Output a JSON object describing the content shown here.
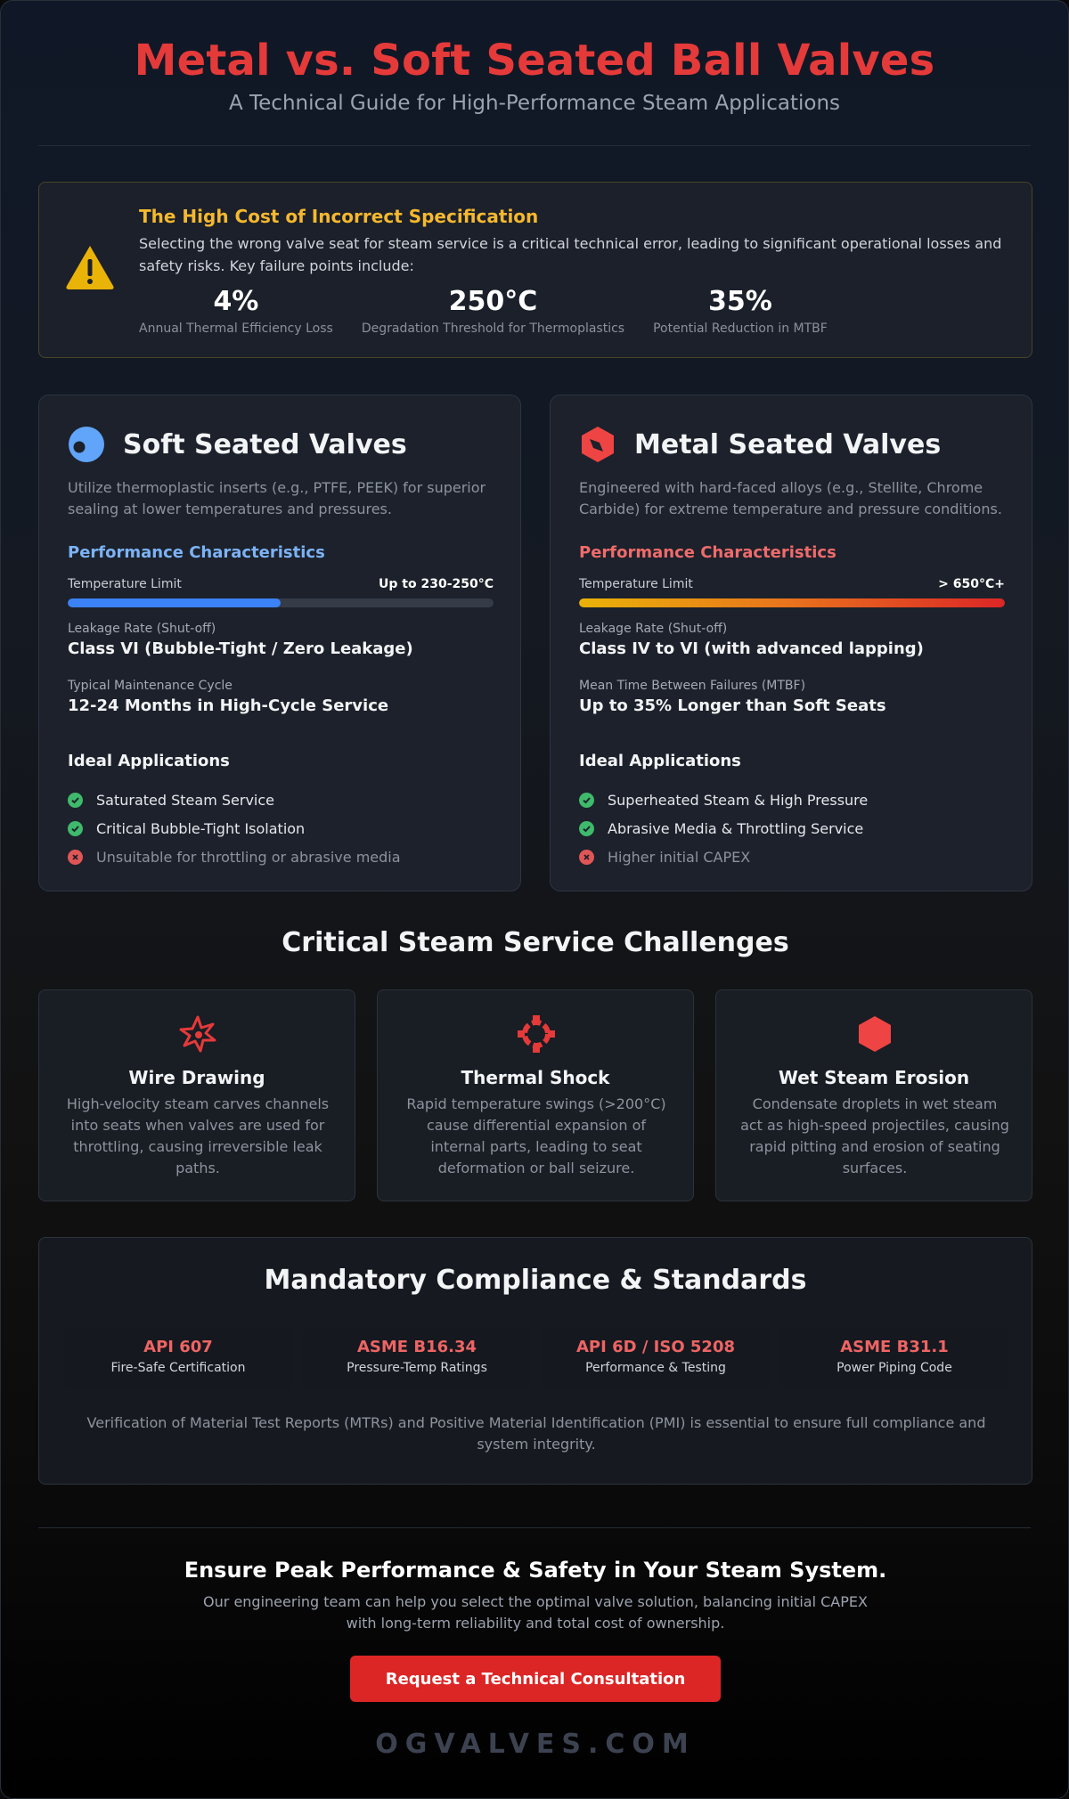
{
  "header": {
    "title": "Metal vs. Soft Seated Ball Valves",
    "subtitle": "A Technical Guide for High-Performance Steam Applications"
  },
  "alert": {
    "icon": "warning-icon",
    "title": "The High Cost of Incorrect Specification",
    "text": "Selecting the wrong valve seat for steam service is a critical technical error, leading to significant operational losses and safety risks. Key failure points include:",
    "stats": [
      {
        "value": "4%",
        "label": "Annual Thermal Efficiency Loss"
      },
      {
        "value": "250°C",
        "label": "Degradation Threshold for Thermoplastics"
      },
      {
        "value": "35%",
        "label": "Potential Reduction in MTBF"
      }
    ]
  },
  "soft": {
    "icon": "soft-seat-icon",
    "title": "Soft Seated Valves",
    "description": "Utilize thermoplastic inserts (e.g., PTFE, PEEK) for superior sealing at lower temperatures and pressures.",
    "perf_title": "Performance Characteristics",
    "temp_label": "Temperature Limit",
    "temp_value": "Up to 230-250°C",
    "temp_fraction": 0.5,
    "leak_label": "Leakage Rate (Shut-off)",
    "leak_value": "Class VI (Bubble-Tight / Zero Leakage)",
    "maint_label": "Typical Maintenance Cycle",
    "maint_value": "12-24 Months in High-Cycle Service",
    "ideal_title": "Ideal Applications",
    "apps": [
      {
        "text": "Saturated Steam Service",
        "type": "pos"
      },
      {
        "text": "Critical Bubble-Tight Isolation",
        "type": "pos"
      },
      {
        "text": "Unsuitable for throttling or abrasive media",
        "type": "neg"
      }
    ]
  },
  "metal": {
    "icon": "metal-seat-icon",
    "title": "Metal Seated Valves",
    "description": "Engineered with hard-faced alloys (e.g., Stellite, Chrome Carbide) for extreme temperature and pressure conditions.",
    "perf_title": "Performance Characteristics",
    "temp_label": "Temperature Limit",
    "temp_value": "> 650°C+",
    "temp_fraction": 1.0,
    "leak_label": "Leakage Rate (Shut-off)",
    "leak_value": "Class IV to VI (with advanced lapping)",
    "maint_label": "Mean Time Between Failures (MTBF)",
    "maint_value": "Up to 35% Longer than Soft Seats",
    "ideal_title": "Ideal Applications",
    "apps": [
      {
        "text": "Superheated Steam & High Pressure",
        "type": "pos"
      },
      {
        "text": "Abrasive Media & Throttling Service",
        "type": "pos"
      },
      {
        "text": "Higher initial CAPEX",
        "type": "neg"
      }
    ]
  },
  "challenges": {
    "title": "Critical Steam Service Challenges",
    "items": [
      {
        "icon": "wire-drawing-icon",
        "title": "Wire Drawing",
        "text": "High-velocity steam carves channels into seats when valves are used for throttling, causing irreversible leak paths."
      },
      {
        "icon": "thermal-shock-icon",
        "title": "Thermal Shock",
        "text": "Rapid temperature swings (>200°C) cause differential expansion of internal parts, leading to seat deformation or ball seizure."
      },
      {
        "icon": "erosion-icon",
        "title": "Wet Steam Erosion",
        "text": "Condensate droplets in wet steam act as high-speed projectiles, causing rapid pitting and erosion of seating surfaces."
      }
    ]
  },
  "compliance": {
    "title": "Mandatory Compliance & Standards",
    "standards": [
      {
        "code": "API 607",
        "desc": "Fire-Safe Certification"
      },
      {
        "code": "ASME B16.34",
        "desc": "Pressure-Temp Ratings"
      },
      {
        "code": "API 6D / ISO 5208",
        "desc": "Performance & Testing"
      },
      {
        "code": "ASME B31.1",
        "desc": "Power Piping Code"
      }
    ],
    "note": "Verification of Material Test Reports (MTRs) and Positive Material Identification (PMI) is essential to ensure full compliance and system integrity."
  },
  "cta": {
    "title": "Ensure Peak Performance & Safety in Your Steam System.",
    "text": "Our engineering team can help you select the optimal valve solution, balancing initial CAPEX with long-term reliability and total cost of ownership.",
    "button": "Request a Technical Consultation"
  },
  "footer": {
    "brand": "OGVALVES.COM"
  },
  "colors": {
    "accent_red": "#e53a3a",
    "warning_yellow": "#f5b82e",
    "soft_blue": "#3b82f6",
    "positive_green": "#3fb96b"
  }
}
